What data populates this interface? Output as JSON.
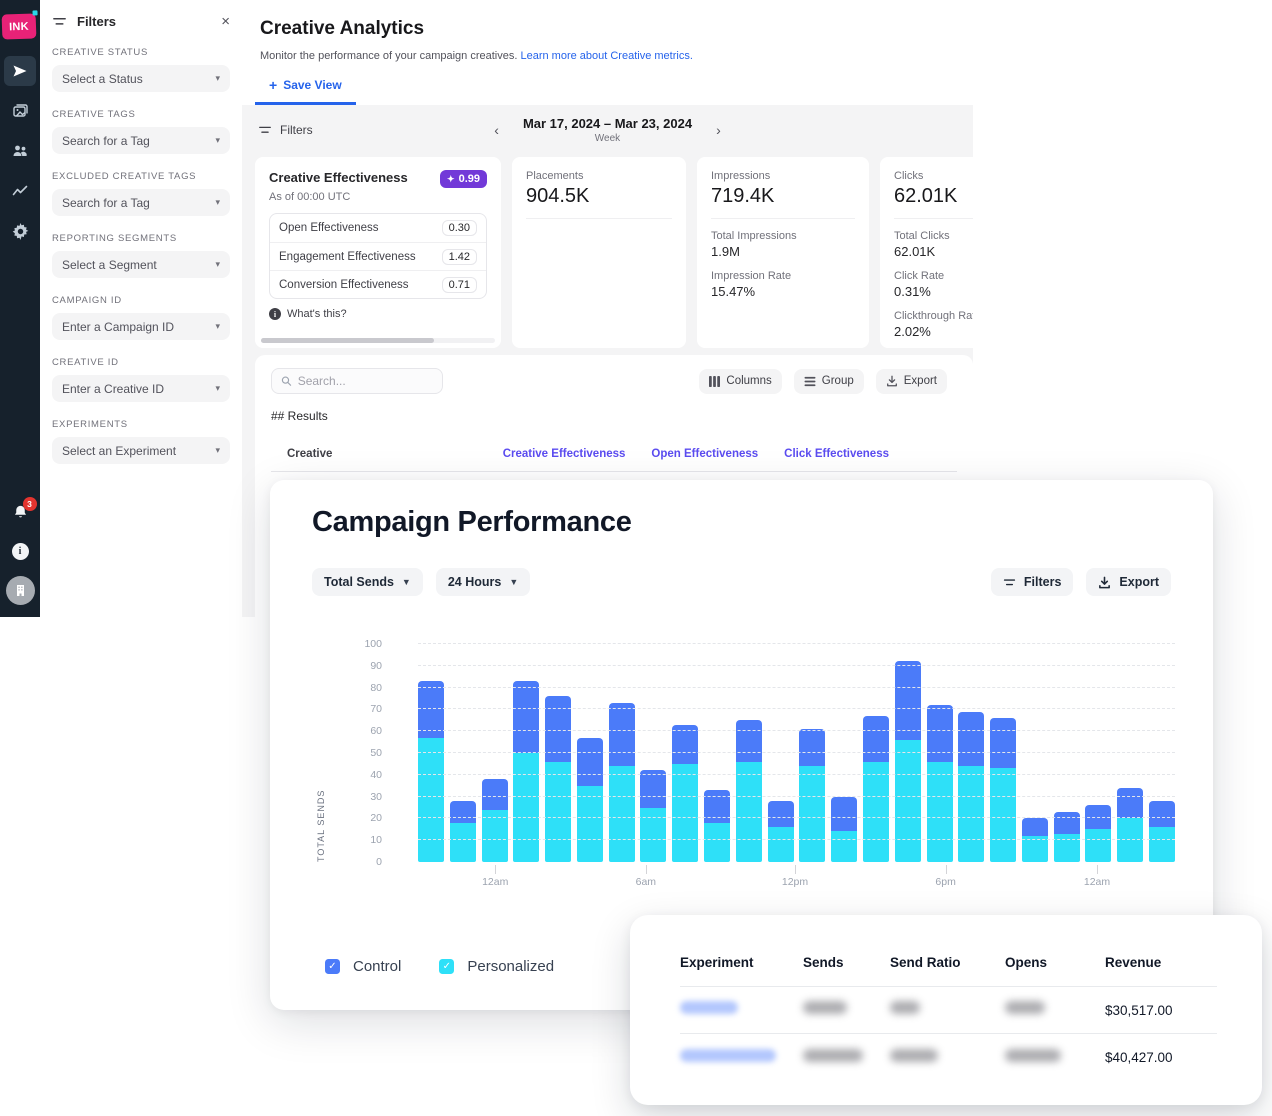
{
  "sidebar": {
    "logo_text": "INK",
    "notification_count": "3"
  },
  "filter_panel": {
    "title": "Filters",
    "groups": [
      {
        "label": "CREATIVE STATUS",
        "value": "Select a Status"
      },
      {
        "label": "CREATIVE TAGS",
        "value": "Search for a Tag"
      },
      {
        "label": "EXCLUDED CREATIVE TAGS",
        "value": "Search for a Tag"
      },
      {
        "label": "REPORTING SEGMENTS",
        "value": "Select a Segment"
      },
      {
        "label": "CAMPAIGN ID",
        "value": "Enter a Campaign ID"
      },
      {
        "label": "CREATIVE ID",
        "value": "Enter a Creative ID"
      },
      {
        "label": "EXPERIMENTS",
        "value": "Select an Experiment"
      }
    ]
  },
  "header": {
    "title": "Creative Analytics",
    "subtitle": "Monitor the performance of your campaign creatives.",
    "subtitle_link": "Learn more about Creative metrics.",
    "save_view_label": "Save View"
  },
  "toolbar": {
    "filters_label": "Filters",
    "date_range": "Mar 17, 2024 – Mar 23, 2024",
    "granularity": "Week"
  },
  "metric_cards": {
    "effectiveness": {
      "title": "Creative Effectiveness",
      "score_badge": "0.99",
      "as_of": "As of 00:00 UTC",
      "rows": [
        {
          "label": "Open Effectiveness",
          "value": "0.30"
        },
        {
          "label": "Engagement Effectiveness",
          "value": "1.42"
        },
        {
          "label": "Conversion Effectiveness",
          "value": "0.71"
        }
      ],
      "whats_this": "What's this?"
    },
    "placements": {
      "label": "Placements",
      "value": "904.5K"
    },
    "impressions": {
      "label": "Impressions",
      "value": "719.4K",
      "subs": [
        {
          "label": "Total Impressions",
          "value": "1.9M"
        },
        {
          "label": "Impression Rate",
          "value": "15.47%"
        }
      ]
    },
    "clicks": {
      "label": "Clicks",
      "value": "62.01K",
      "subs": [
        {
          "label": "Total Clicks",
          "value": "62.01K"
        },
        {
          "label": "Click Rate",
          "value": "0.31%"
        },
        {
          "label": "Clickthrough Rate",
          "value": "2.02%"
        }
      ]
    }
  },
  "results_section": {
    "search_placeholder": "Search...",
    "columns_button": "Columns",
    "group_button": "Group",
    "export_button": "Export",
    "results_count": "## Results",
    "table_columns": {
      "creative": "Creative",
      "metric_links": [
        "Creative Effectiveness",
        "Open Effectiveness",
        "Click Effectiveness"
      ]
    }
  },
  "campaign_overlay": {
    "title": "Campaign Performance",
    "metric_dropdown": "Total Sends",
    "range_dropdown": "24 Hours",
    "filters_button": "Filters",
    "export_button": "Export",
    "legend": [
      {
        "label": "Control",
        "color": "#4b7bf9"
      },
      {
        "label": "Personalized",
        "color": "#2ee0f8"
      }
    ],
    "chart_data": {
      "type": "bar",
      "stacked": true,
      "title": "Campaign Performance",
      "xlabel": "",
      "ylabel": "TOTAL SENDS",
      "ylim": [
        0,
        100
      ],
      "ytick_step": 10,
      "grid": true,
      "legend_position": "bottom",
      "x_tick_labels": [
        "12am",
        "6am",
        "12pm",
        "6pm",
        "12am"
      ],
      "x_tick_positions_pct": [
        10.2,
        30.1,
        49.8,
        69.7,
        89.7
      ],
      "series": [
        {
          "name": "Personalized",
          "color": "#2ee0f8",
          "values": [
            57,
            18,
            24,
            50,
            46,
            35,
            44,
            25,
            45,
            18,
            46,
            16,
            44,
            14,
            46,
            56,
            46,
            44,
            43,
            12,
            13,
            15,
            20,
            16
          ]
        },
        {
          "name": "Control",
          "color": "#4b7bf9",
          "values": [
            26,
            10,
            14,
            33,
            30,
            22,
            29,
            17,
            18,
            15,
            19,
            12,
            17,
            16,
            21,
            36,
            26,
            25,
            23,
            8,
            10,
            11,
            14,
            12
          ]
        }
      ]
    }
  },
  "experiments_table": {
    "columns": [
      "Experiment",
      "Sends",
      "Send Ratio",
      "Opens",
      "Revenue"
    ],
    "rows": [
      {
        "revenue": "$30,517.00"
      },
      {
        "revenue": "$40,427.00"
      }
    ]
  },
  "colors": {
    "sidebar_bg": "#16212c",
    "brand_pink": "#e82277",
    "badge_purple": "#7239d8",
    "link_blue": "#2563eb",
    "metric_link_indigo": "#5b4cf0",
    "control_blue": "#4b7bf9",
    "personalized_cyan": "#2ee0f8",
    "panel_gray": "#f4f4f5"
  }
}
